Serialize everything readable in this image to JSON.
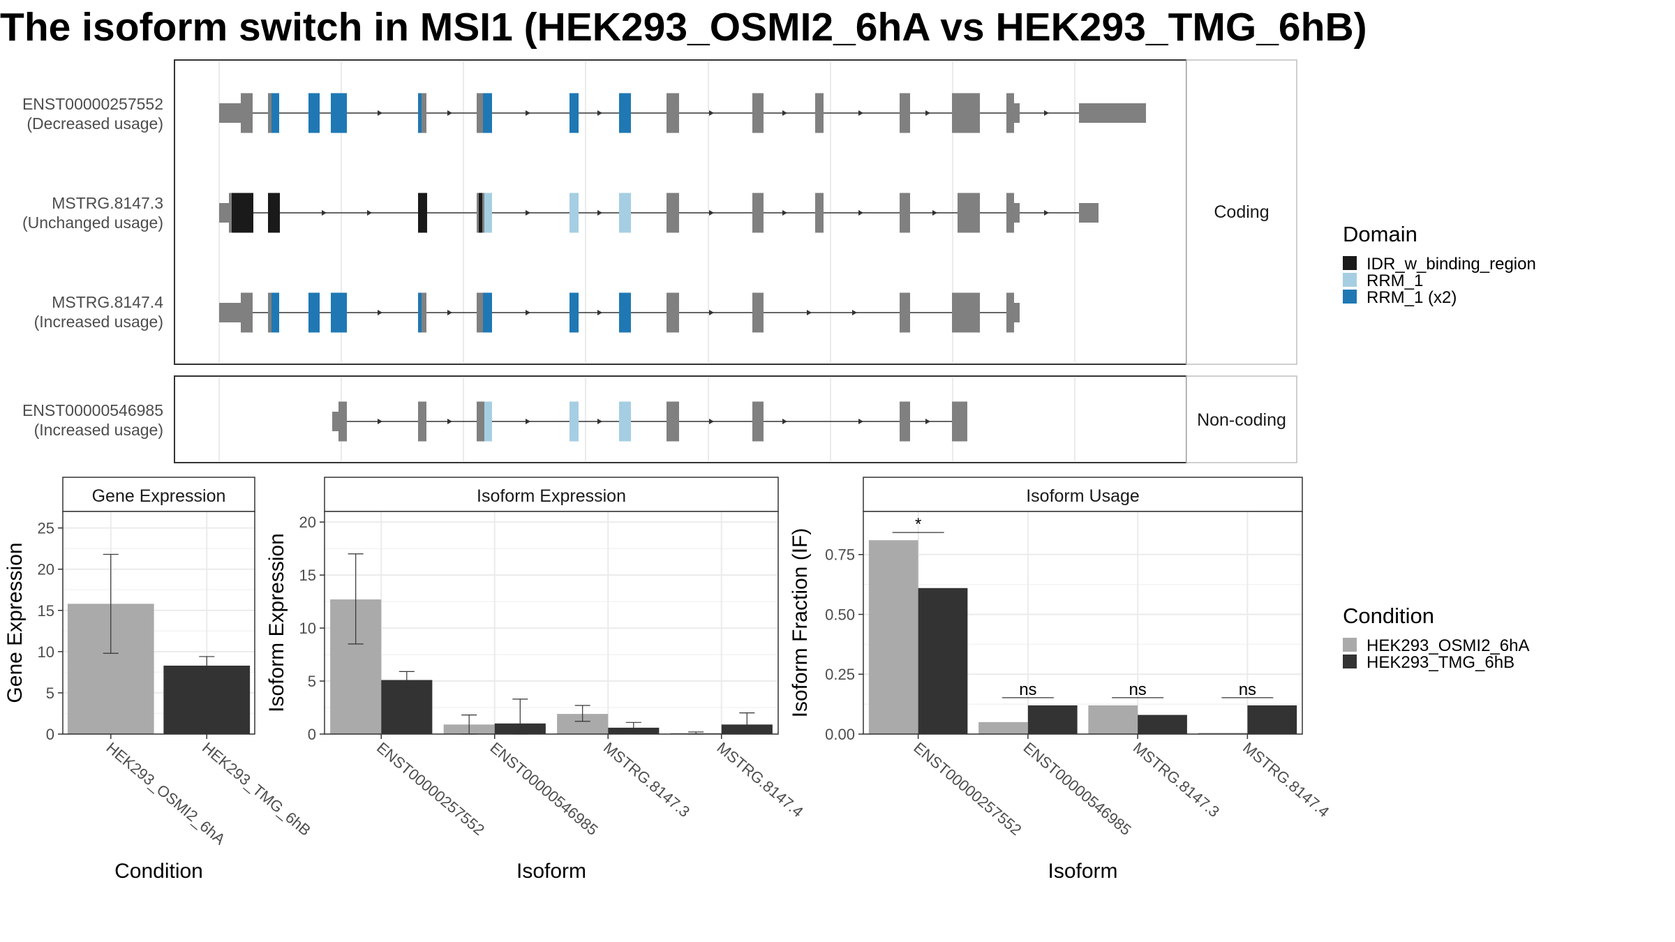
{
  "title": "The isoform switch in MSI1 (HEK293_OSMI2_6hA vs HEK293_TMG_6hB)",
  "colors": {
    "exon": "#808080",
    "idr": "#1a1a1a",
    "rrm1": "#a6cee3",
    "rrm1x2": "#1f78b4",
    "conditionA": "#aaaaaa",
    "conditionB": "#333333"
  },
  "structure": {
    "panels": [
      {
        "strip": "Coding",
        "isoforms": [
          {
            "id": "ENST00000257552",
            "usage": "(Decreased usage)"
          },
          {
            "id": "MSTRG.8147.3",
            "usage": "(Unchanged usage)"
          },
          {
            "id": "MSTRG.8147.4",
            "usage": "(Increased usage)"
          }
        ]
      },
      {
        "strip": "Non-coding",
        "isoforms": [
          {
            "id": "ENST00000546985",
            "usage": "(Increased usage)"
          }
        ]
      }
    ]
  },
  "legend_domain": {
    "title": "Domain",
    "items": [
      {
        "label": "IDR_w_binding_region",
        "color": "#1a1a1a"
      },
      {
        "label": "RRM_1",
        "color": "#a6cee3"
      },
      {
        "label": "RRM_1 (x2)",
        "color": "#1f78b4"
      }
    ]
  },
  "legend_condition": {
    "title": "Condition",
    "items": [
      {
        "label": "HEK293_OSMI2_6hA",
        "color": "#aaaaaa"
      },
      {
        "label": "HEK293_TMG_6hB",
        "color": "#333333"
      }
    ]
  },
  "chart_data": [
    {
      "type": "bar",
      "title": "Gene Expression",
      "xlabel": "Condition",
      "ylabel": "Gene Expression",
      "categories": [
        "HEK293_OSMI2_6hA",
        "HEK293_TMG_6hB"
      ],
      "values": [
        15.8,
        8.3
      ],
      "error_low": [
        9.8,
        7.2
      ],
      "error_high": [
        21.8,
        9.4
      ],
      "ylim": [
        0,
        27
      ],
      "yticks": [
        "0",
        "5",
        "10",
        "15",
        "20",
        "25"
      ]
    },
    {
      "type": "bar",
      "title": "Isoform Expression",
      "xlabel": "Isoform",
      "ylabel": "Isoform Expression",
      "categories": [
        "ENST00000257552",
        "ENST00000546985",
        "MSTRG.8147.3",
        "MSTRG.8147.4"
      ],
      "series": [
        {
          "name": "HEK293_OSMI2_6hA",
          "values": [
            12.7,
            0.9,
            1.9,
            0.1
          ],
          "error_low": [
            8.5,
            0.0,
            1.2,
            0.0
          ],
          "error_high": [
            17.0,
            1.8,
            2.7,
            0.2
          ]
        },
        {
          "name": "HEK293_TMG_6hB",
          "values": [
            5.1,
            1.0,
            0.6,
            0.9
          ],
          "error_low": [
            4.4,
            0.0,
            0.2,
            0.1
          ],
          "error_high": [
            5.9,
            3.3,
            1.1,
            2.0
          ]
        }
      ],
      "ylim": [
        0,
        21
      ],
      "yticks": [
        "0",
        "5",
        "10",
        "15",
        "20"
      ]
    },
    {
      "type": "bar",
      "title": "Isoform Usage",
      "xlabel": "Isoform",
      "ylabel": "Isoform Fraction (IF)",
      "categories": [
        "ENST00000257552",
        "ENST00000546985",
        "MSTRG.8147.3",
        "MSTRG.8147.4"
      ],
      "series": [
        {
          "name": "HEK293_OSMI2_6hA",
          "values": [
            0.81,
            0.05,
            0.12,
            0.005
          ]
        },
        {
          "name": "HEK293_TMG_6hB",
          "values": [
            0.61,
            0.12,
            0.08,
            0.12
          ]
        }
      ],
      "significance": [
        "*",
        "ns",
        "ns",
        "ns"
      ],
      "ylim": [
        0,
        0.93
      ],
      "yticks": [
        "0.00",
        "0.25",
        "0.50",
        "0.75"
      ]
    }
  ]
}
